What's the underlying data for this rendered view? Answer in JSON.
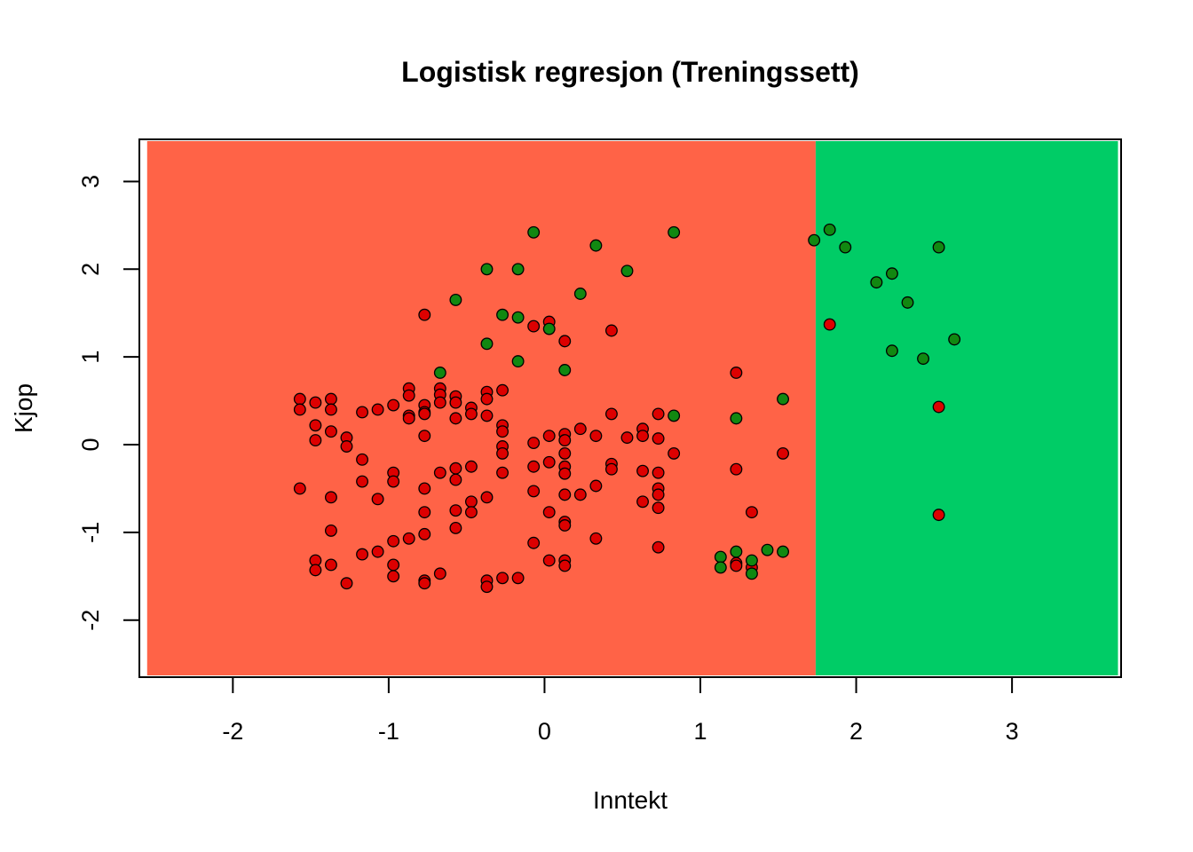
{
  "chart_data": {
    "type": "scatter",
    "title": "Logistisk regresjon (Treningssett)",
    "xlabel": "Inntekt",
    "ylabel": "Kjop",
    "xlim": [
      -2.6,
      3.7
    ],
    "ylim": [
      -2.65,
      3.48
    ],
    "xticks": [
      "-2",
      "-1",
      "0",
      "1",
      "2",
      "3"
    ],
    "yticks": [
      "-2",
      "-1",
      "0",
      "1",
      "2",
      "3"
    ],
    "regions": [
      {
        "name": "0",
        "color": "#FF6347",
        "x_range": [
          -2.55,
          1.74
        ],
        "y_range": [
          -2.63,
          3.46
        ]
      },
      {
        "name": "1",
        "color": "#00CC66",
        "x_range": [
          1.74,
          3.68
        ],
        "y_range": [
          -2.63,
          3.46
        ]
      }
    ],
    "colors": {
      "class0_point": "#DD0000",
      "class1_point": "#118811",
      "point_border": "#000000"
    },
    "series": [
      {
        "label_value": 0,
        "color": "#DD0000",
        "points": [
          [
            -1.57,
            0.52
          ],
          [
            -1.57,
            0.4
          ],
          [
            -1.47,
            0.48
          ],
          [
            -1.47,
            0.22
          ],
          [
            -1.47,
            0.05
          ],
          [
            -1.37,
            0.52
          ],
          [
            -1.37,
            0.4
          ],
          [
            -1.37,
            0.15
          ],
          [
            -1.27,
            0.08
          ],
          [
            -1.27,
            -0.02
          ],
          [
            -1.17,
            0.37
          ],
          [
            -1.07,
            0.4
          ],
          [
            -0.97,
            0.45
          ],
          [
            -0.87,
            0.64
          ],
          [
            -0.87,
            0.56
          ],
          [
            -0.87,
            0.33
          ],
          [
            -0.87,
            0.3
          ],
          [
            -0.77,
            0.45
          ],
          [
            -0.77,
            0.37
          ],
          [
            -0.77,
            0.35
          ],
          [
            -0.77,
            0.1
          ],
          [
            -0.67,
            0.64
          ],
          [
            -0.67,
            0.57
          ],
          [
            -0.67,
            0.48
          ],
          [
            -0.57,
            0.55
          ],
          [
            -0.57,
            0.48
          ],
          [
            -0.57,
            0.3
          ],
          [
            -0.47,
            0.42
          ],
          [
            -0.47,
            0.35
          ],
          [
            -0.37,
            0.6
          ],
          [
            -0.37,
            0.52
          ],
          [
            -0.37,
            0.33
          ],
          [
            -0.27,
            0.62
          ],
          [
            -0.27,
            0.22
          ],
          [
            -0.27,
            0.15
          ],
          [
            -1.17,
            -0.17
          ],
          [
            -1.17,
            -0.42
          ],
          [
            -0.97,
            -0.32
          ],
          [
            -0.97,
            -0.42
          ],
          [
            -0.77,
            -0.5
          ],
          [
            -0.67,
            -0.32
          ],
          [
            -0.57,
            -0.27
          ],
          [
            -0.57,
            -0.4
          ],
          [
            -0.47,
            -0.25
          ],
          [
            -1.57,
            -0.5
          ],
          [
            -1.37,
            -0.6
          ],
          [
            -1.07,
            -0.62
          ],
          [
            -0.77,
            -0.77
          ],
          [
            -0.57,
            -0.75
          ],
          [
            -0.47,
            -0.65
          ],
          [
            -0.47,
            -0.77
          ],
          [
            -0.37,
            -0.6
          ],
          [
            -1.37,
            -0.98
          ],
          [
            -0.57,
            -0.95
          ],
          [
            -0.77,
            -1.02
          ],
          [
            -0.87,
            -1.07
          ],
          [
            -0.97,
            -1.1
          ],
          [
            -1.17,
            -1.25
          ],
          [
            -1.07,
            -1.22
          ],
          [
            -1.47,
            -1.32
          ],
          [
            -1.47,
            -1.43
          ],
          [
            -1.37,
            -1.37
          ],
          [
            -0.97,
            -1.37
          ],
          [
            -0.97,
            -1.5
          ],
          [
            -1.27,
            -1.58
          ],
          [
            -0.77,
            -1.55
          ],
          [
            -0.77,
            -1.58
          ],
          [
            -0.67,
            -1.47
          ],
          [
            -0.37,
            -1.55
          ],
          [
            -0.37,
            -1.62
          ],
          [
            -0.27,
            -1.52
          ],
          [
            -0.17,
            -1.52
          ],
          [
            -0.27,
            -0.02
          ],
          [
            -0.27,
            -0.1
          ],
          [
            -0.27,
            -0.32
          ],
          [
            -0.07,
            0.02
          ],
          [
            0.03,
            0.1
          ],
          [
            0.13,
            0.12
          ],
          [
            0.13,
            0.05
          ],
          [
            0.23,
            0.18
          ],
          [
            0.33,
            0.1
          ],
          [
            0.43,
            0.35
          ],
          [
            0.53,
            0.08
          ],
          [
            0.63,
            0.18
          ],
          [
            0.63,
            0.1
          ],
          [
            0.73,
            0.35
          ],
          [
            0.73,
            0.07
          ],
          [
            -0.07,
            -0.25
          ],
          [
            0.03,
            -0.2
          ],
          [
            0.13,
            -0.1
          ],
          [
            0.13,
            -0.25
          ],
          [
            0.13,
            -0.33
          ],
          [
            0.43,
            -0.22
          ],
          [
            0.43,
            -0.28
          ],
          [
            0.63,
            -0.3
          ],
          [
            0.73,
            -0.32
          ],
          [
            0.83,
            -0.1
          ],
          [
            -0.07,
            -0.53
          ],
          [
            0.13,
            -0.57
          ],
          [
            0.23,
            -0.57
          ],
          [
            0.33,
            -0.47
          ],
          [
            0.63,
            -0.65
          ],
          [
            0.73,
            -0.5
          ],
          [
            0.73,
            -0.57
          ],
          [
            0.73,
            -0.72
          ],
          [
            0.03,
            -0.77
          ],
          [
            0.13,
            -0.88
          ],
          [
            0.13,
            -0.92
          ],
          [
            -0.07,
            -1.12
          ],
          [
            0.03,
            -1.32
          ],
          [
            0.13,
            -1.32
          ],
          [
            0.13,
            -1.38
          ],
          [
            0.33,
            -1.07
          ],
          [
            0.73,
            -1.17
          ],
          [
            -0.07,
            1.35
          ],
          [
            0.03,
            1.4
          ],
          [
            0.13,
            1.18
          ],
          [
            0.43,
            1.3
          ],
          [
            -0.77,
            1.48
          ],
          [
            1.23,
            0.82
          ],
          [
            1.23,
            -0.28
          ],
          [
            1.33,
            -0.77
          ],
          [
            1.53,
            -0.1
          ],
          [
            1.23,
            -1.35
          ],
          [
            1.23,
            -1.38
          ],
          [
            1.33,
            -1.4
          ],
          [
            1.83,
            1.37
          ],
          [
            2.53,
            0.43
          ],
          [
            2.53,
            -0.8
          ]
        ]
      },
      {
        "label_value": 1,
        "color": "#118811",
        "points": [
          [
            -0.07,
            2.42
          ],
          [
            0.33,
            2.27
          ],
          [
            0.83,
            2.42
          ],
          [
            -0.37,
            2.0
          ],
          [
            -0.17,
            2.0
          ],
          [
            0.53,
            1.98
          ],
          [
            -0.57,
            1.65
          ],
          [
            0.23,
            1.72
          ],
          [
            -0.27,
            1.48
          ],
          [
            -0.17,
            1.45
          ],
          [
            0.03,
            1.32
          ],
          [
            -0.37,
            1.15
          ],
          [
            -0.17,
            0.95
          ],
          [
            0.13,
            0.85
          ],
          [
            -0.67,
            0.82
          ],
          [
            0.83,
            0.33
          ],
          [
            1.23,
            0.3
          ],
          [
            1.53,
            0.52
          ],
          [
            1.13,
            -1.28
          ],
          [
            1.13,
            -1.4
          ],
          [
            1.23,
            -1.22
          ],
          [
            1.33,
            -1.32
          ],
          [
            1.33,
            -1.47
          ],
          [
            1.43,
            -1.2
          ],
          [
            1.53,
            -1.22
          ],
          [
            1.73,
            2.33
          ],
          [
            1.83,
            2.45
          ],
          [
            1.93,
            2.25
          ],
          [
            2.13,
            1.85
          ],
          [
            2.23,
            1.95
          ],
          [
            2.33,
            1.62
          ],
          [
            2.53,
            2.25
          ],
          [
            2.23,
            1.07
          ],
          [
            2.43,
            0.98
          ],
          [
            2.63,
            1.2
          ]
        ]
      }
    ]
  }
}
